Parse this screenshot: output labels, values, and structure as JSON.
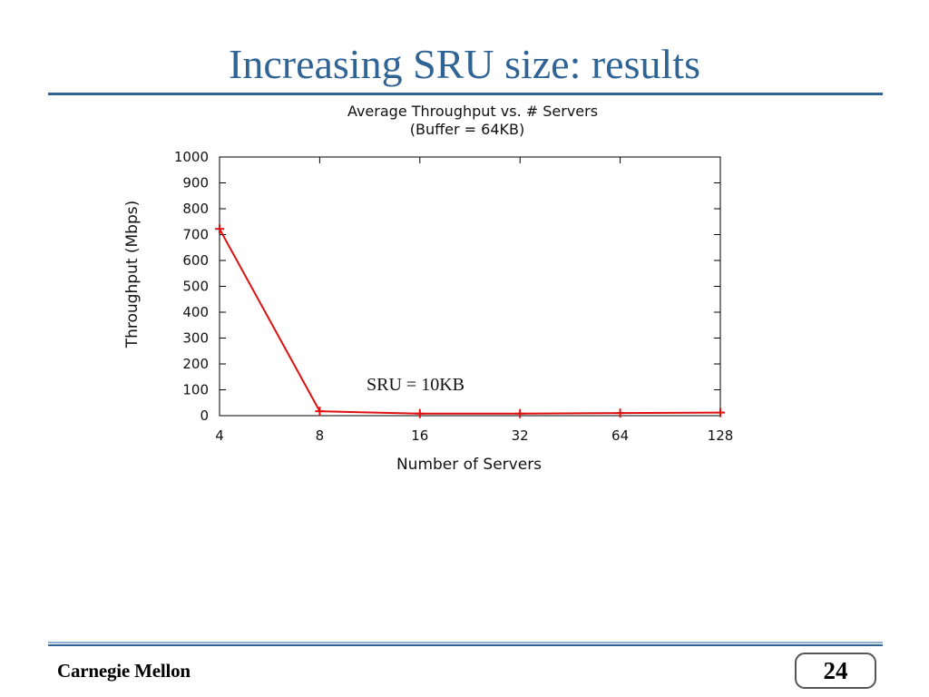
{
  "slide": {
    "title": "Increasing SRU size: results",
    "footer": "Carnegie Mellon",
    "page_number": "24"
  },
  "colors": {
    "title": "#2f6494",
    "rule": "#2f6494",
    "series": "#e01010"
  },
  "chart_data": {
    "type": "line",
    "title": "Average Throughput vs. # Servers",
    "subtitle": "(Buffer = 64KB)",
    "xlabel": "Number of Servers",
    "ylabel": "Throughput (Mbps)",
    "categories": [
      "4",
      "8",
      "16",
      "32",
      "64",
      "128"
    ],
    "yticks": [
      "0",
      "100",
      "200",
      "300",
      "400",
      "500",
      "600",
      "700",
      "800",
      "900",
      "1000"
    ],
    "ylim": [
      0,
      1000
    ],
    "x_scale": "log2",
    "grid": false,
    "series": [
      {
        "values": [
          722,
          17,
          8,
          8,
          10,
          12
        ]
      }
    ],
    "annotations": [
      {
        "text": "SRU = 10KB"
      }
    ]
  }
}
